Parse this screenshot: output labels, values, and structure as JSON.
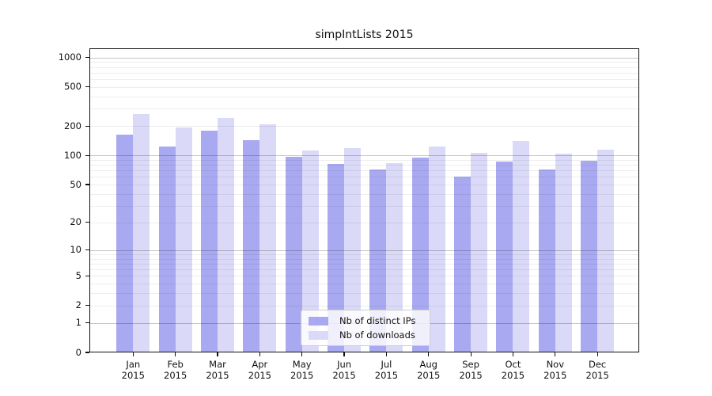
{
  "chart_data": {
    "type": "bar",
    "title": "simpIntLists 2015",
    "categories": [
      "Jan",
      "Feb",
      "Mar",
      "Apr",
      "May",
      "Jun",
      "Jul",
      "Aug",
      "Sep",
      "Oct",
      "Nov",
      "Dec"
    ],
    "x_year_label": "2015",
    "series": [
      {
        "name": "Nb of distinct IPs",
        "color": "#a9a9f1",
        "values": [
          163,
          124,
          178,
          143,
          97,
          81,
          71,
          95,
          61,
          86,
          72,
          88
        ]
      },
      {
        "name": "Nb of downloads",
        "color": "#dadaf8",
        "values": [
          267,
          194,
          242,
          207,
          112,
          119,
          83,
          124,
          107,
          141,
          105,
          115
        ]
      }
    ],
    "y_scale": "log1p",
    "y_ticks": [
      0,
      1,
      2,
      5,
      10,
      20,
      50,
      100,
      200,
      500,
      1000
    ],
    "y_minor_ticks": [
      3,
      4,
      6,
      7,
      8,
      9,
      30,
      40,
      60,
      70,
      80,
      90,
      300,
      400,
      600,
      700,
      800,
      900
    ],
    "y_major_gridlines": [
      1,
      10,
      100,
      1000
    ],
    "ylim": [
      0,
      1240
    ],
    "grid": true,
    "legend_position": "bottom-center"
  }
}
